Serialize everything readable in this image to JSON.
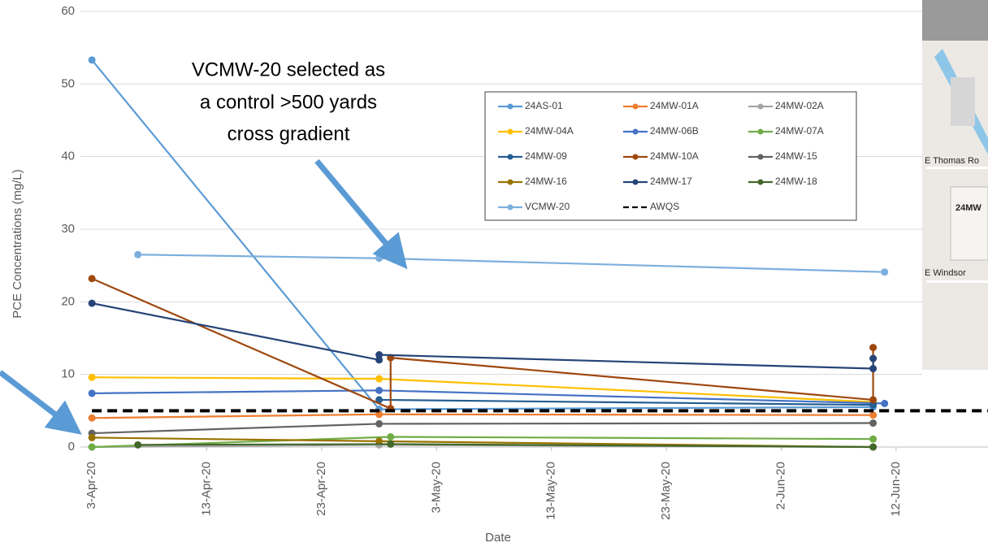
{
  "chart_data": {
    "type": "line",
    "annotation": [
      "VCMW-20 selected as",
      "a control >500 yards",
      "cross gradient"
    ],
    "x_label": "Date",
    "y_label": "PCE Concentrations (mg/L)",
    "xlim": [
      "2020-04-02",
      "2020-06-20"
    ],
    "xticks": [
      {
        "value": "2020-04-03",
        "label": "3-Apr-20"
      },
      {
        "value": "2020-04-13",
        "label": "13-Apr-20"
      },
      {
        "value": "2020-04-23",
        "label": "23-Apr-20"
      },
      {
        "value": "2020-05-03",
        "label": "3-May-20"
      },
      {
        "value": "2020-05-13",
        "label": "13-May-20"
      },
      {
        "value": "2020-05-23",
        "label": "23-May-20"
      },
      {
        "value": "2020-06-02",
        "label": "2-Jun-20"
      },
      {
        "value": "2020-06-12",
        "label": "12-Jun-20"
      }
    ],
    "ylim": [
      0,
      60
    ],
    "yticks": [
      0,
      10,
      20,
      30,
      40,
      50,
      60
    ],
    "grid": true,
    "series": [
      {
        "name": "24AS-01",
        "color": "#5b9bd5",
        "x": [
          "2020-04-03",
          "2020-04-28",
          "2020-06-10"
        ],
        "values": [
          53.3,
          5.2,
          5.5
        ]
      },
      {
        "name": "24MW-01A",
        "color": "#ed7d31",
        "x": [
          "2020-04-03",
          "2020-04-28",
          "2020-06-10"
        ],
        "values": [
          4,
          4.5,
          4.4
        ]
      },
      {
        "name": "24MW-02A",
        "color": "#a5a5a5",
        "x": [
          "2020-04-03",
          "2020-04-28",
          "2020-06-10"
        ],
        "values": [
          0,
          0.3,
          0
        ]
      },
      {
        "name": "24MW-04A",
        "color": "#ffc000",
        "x": [
          "2020-04-03",
          "2020-04-28",
          "2020-06-10"
        ],
        "values": [
          9.6,
          9.4,
          6.2
        ]
      },
      {
        "name": "24MW-06B",
        "color": "#4472c4",
        "x": [
          "2020-04-03",
          "2020-04-28",
          "2020-06-11"
        ],
        "values": [
          7.4,
          7.8,
          6
        ]
      },
      {
        "name": "24MW-07A",
        "color": "#70ad47",
        "x": [
          "2020-04-03",
          "2020-04-29",
          "2020-06-10"
        ],
        "values": [
          0,
          1.4,
          1.1
        ]
      },
      {
        "name": "24MW-09",
        "color": "#255e91",
        "x": [
          "2020-04-28",
          "2020-06-10"
        ],
        "values": [
          6.5,
          5.8
        ]
      },
      {
        "name": "24MW-10A",
        "color": "#9e480e",
        "x": [
          "2020-04-03",
          "2020-04-29",
          "2020-04-29",
          "2020-06-10",
          "2020-06-10"
        ],
        "values": [
          23.2,
          5.3,
          12.3,
          6.5,
          13.7
        ]
      },
      {
        "name": "24MW-15",
        "color": "#636363",
        "x": [
          "2020-04-03",
          "2020-04-28",
          "2020-06-10"
        ],
        "values": [
          1.9,
          3.2,
          3.3
        ]
      },
      {
        "name": "24MW-16",
        "color": "#997300",
        "x": [
          "2020-04-03",
          "2020-04-28",
          "2020-06-10"
        ],
        "values": [
          1.3,
          0.8,
          0
        ]
      },
      {
        "name": "24MW-17",
        "color": "#264478",
        "x": [
          "2020-04-03",
          "2020-04-28",
          "2020-04-28",
          "2020-06-10",
          "2020-06-10"
        ],
        "values": [
          19.8,
          12,
          12.7,
          10.8,
          12.2
        ]
      },
      {
        "name": "24MW-18",
        "color": "#43682b",
        "x": [
          "2020-04-07",
          "2020-04-29",
          "2020-06-10"
        ],
        "values": [
          0.3,
          0.4,
          0
        ]
      },
      {
        "name": "VCMW-20",
        "color": "#7cafdd",
        "x": [
          "2020-04-07",
          "2020-04-28",
          "2020-06-11"
        ],
        "values": [
          26.5,
          26,
          24.1
        ]
      },
      {
        "name": "AWQS",
        "color": "#000000",
        "dash": true,
        "markers": false,
        "x": [
          "2020-04-03",
          "2020-06-20"
        ],
        "values": [
          5,
          5
        ]
      }
    ]
  },
  "map": {
    "labels": [
      "E Thomas Ro",
      "24MW",
      "E Windsor"
    ]
  }
}
